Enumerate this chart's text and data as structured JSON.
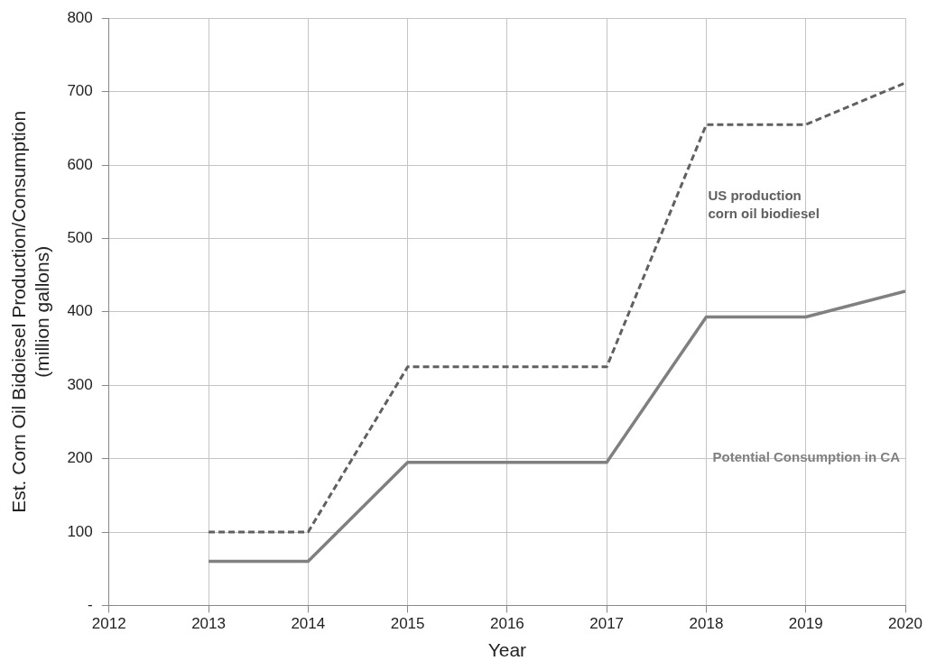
{
  "chart_data": {
    "type": "line",
    "xlabel": "Year",
    "ylabel": "Est. Corn Oil Bidoiesel Production/Consumption (million gallons)",
    "x": [
      2013,
      2014,
      2015,
      2016,
      2017,
      2018,
      2019,
      2020
    ],
    "series": [
      {
        "name": "US production corn oil biodiesel",
        "color": "#606060",
        "line_style": "dashed",
        "values": [
          100,
          100,
          325,
          325,
          325,
          655,
          655,
          712
        ]
      },
      {
        "name": "Potential Consumption in CA",
        "color": "#808080",
        "line_style": "solid",
        "values": [
          60,
          60,
          195,
          195,
          195,
          393,
          393,
          428
        ]
      }
    ],
    "xlim": [
      2012,
      2020
    ],
    "xticks": [
      2012,
      2013,
      2014,
      2015,
      2016,
      2017,
      2018,
      2019,
      2020
    ],
    "ylim": [
      0,
      800
    ],
    "yticks": [
      {
        "value": 0,
        "label": "-"
      },
      100,
      200,
      300,
      400,
      500,
      600,
      700,
      800
    ],
    "grid": true,
    "legend": false,
    "marker": "none"
  }
}
